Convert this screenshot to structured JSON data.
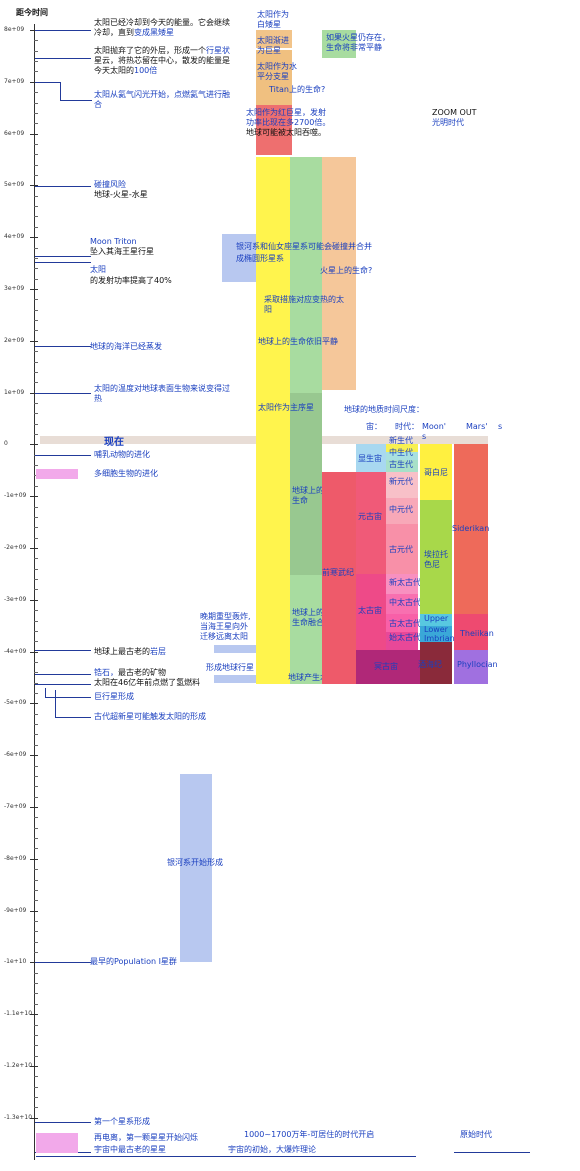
{
  "axis": {
    "title": "距今时间",
    "ticks": [
      "8e+09",
      "7e+09",
      "6e+09",
      "5e+09",
      "4e+09",
      "3e+09",
      "2e+09",
      "1e+09",
      "0",
      "-1e+09",
      "-2e+09",
      "-3e+09",
      "-4e+09",
      "-5e+09",
      "-6e+09",
      "-7e+09",
      "-8e+09",
      "-9e+09",
      "-1e+10",
      "-1.1e+10",
      "-1.2e+10",
      "-1.3e+10"
    ]
  },
  "left_events": {
    "white_dwarf_1": "太阳已经冷却到今天的能量。它会继续",
    "white_dwarf_2a": "冷却，直到",
    "white_dwarf_2b": "变成黑矮星",
    "planetary_nebula_1a": "太阳抛弃了它的外层，形成一个",
    "planetary_nebula_1b": "行星状",
    "planetary_nebula_2": "星云，将热芯留在中心，散发的能量是",
    "planetary_nebula_3a": "今天太阳的",
    "planetary_nebula_3b": "100倍",
    "helium_flash_1": "太阳从氦气闪光开始，点燃氦气进行融",
    "helium_flash_2": "合",
    "collision_1": "碰撞风险",
    "collision_2": "地球-火星-水星",
    "triton_1": "Moon Triton",
    "triton_2": "坠入其海王星行星",
    "sun_power_1": "太阳",
    "sun_power_2": "的发射功率提高了40%",
    "ocean": "地球的海洋已经蒸发",
    "temperature_1": "太阳的温度对地球表面生物来说变得过",
    "temperature_2": "热",
    "now": "现在",
    "mammals": "哺乳动物的进化",
    "multicell": "多细胞生物的进化",
    "bombardment_1": "晚期重型轰炸,",
    "bombardment_2": "当海王星向外",
    "bombardment_3": "迁移远离太阳",
    "oldest_rock_a": "地球上最古老的",
    "oldest_rock_b": "岩层",
    "zircon_a": "锆石，",
    "zircon_b": "最古老的矿物",
    "sun_fusion": "太阳在46亿年前点燃了氢燃料",
    "planet_formation": "形成地球行星",
    "giant_planets": "巨行星形成",
    "supernova": "古代超新星可能触发太阳的形成",
    "galaxy_formation": "银河系开始形成",
    "population_1": "最早的Population I星群",
    "first_galaxy": "第一个星系形成",
    "recombination": "再电离，第一颗星星开始闪烁",
    "oldest_star": "宇宙中最古老的星星"
  },
  "column_text": {
    "sun_wd_1": "太阳作为",
    "sun_wd_2": "白矮星",
    "sun_giant_1": "太阳渐进",
    "sun_giant_2": "为巨星",
    "mercury_1": "太阳作为水",
    "mercury_2": "平分支星",
    "titan": "Titan上的生命?",
    "red_giant_1": "太阳作为红巨星，发射",
    "red_giant_2": "功率比现在多2700倍。",
    "red_giant_3": "地球可能被太阳吞噬。",
    "mars_life_1": "如果火星仍存在，",
    "mars_life_2": "生命将非常平静",
    "milky_way_1": "银河系和仙女座星系可能会碰撞并合并",
    "milky_way_2": "成椭圆形星系",
    "mars_life_q": "火星上的生命?",
    "measures_1": "采取措施对应变热的太",
    "measures_2": "阳",
    "life_calm": "地球上的生命依旧平静",
    "main_seq": "太阳作为主序星",
    "life_earth_1": "地球上的",
    "life_earth_2": "生命",
    "life_fusion_1": "地球上的",
    "life_fusion_2": "生命融合",
    "life_origin": "地球产生水",
    "cryogenian": "前寒武纪",
    "zoom_1": "ZOOM OUT",
    "zoom_2": "光明时代",
    "geo_title": "地球的地质时间尺度：",
    "eon_hdr": "宙：",
    "era_hdr": "时代：",
    "moon_hdr": "Moon'",
    "moon_hdr2": "s",
    "mars_hdr": "Mars'",
    "mars_hdr2": "s"
  },
  "geo": {
    "phanerozoic": "显生宙",
    "cenozoic": "新生代",
    "mesozoic": "中生代",
    "paleozoic": "古生代",
    "neoproterozoic": "新元代",
    "mesoproterozoic": "中元代",
    "paleoproterozoic": "古元代",
    "proterozoic": "元古宙",
    "archean": "太古宙",
    "neoarchean": "新太古代",
    "mesoarchean": "中太古代",
    "paleoarchean": "古太古代",
    "eoarchean": "始太古代",
    "hadean": "冥古宙",
    "copernican": "哥白尼",
    "eratosthenian_1": "埃拉托",
    "eratosthenian_2": "色尼",
    "upper": "Upper",
    "lower": "Lower",
    "imbrian": "Imbrian",
    "nectarian": "酒海纪",
    "siderikan": "Siderikan",
    "theiikan": "Theiikan",
    "phyllocian": "Phyllocian"
  },
  "bottom": {
    "habitable": "1000~1700万年-可居住的时代开启",
    "big_bang": "宇宙的初始，大爆炸理论",
    "primordial": "原始时代"
  }
}
